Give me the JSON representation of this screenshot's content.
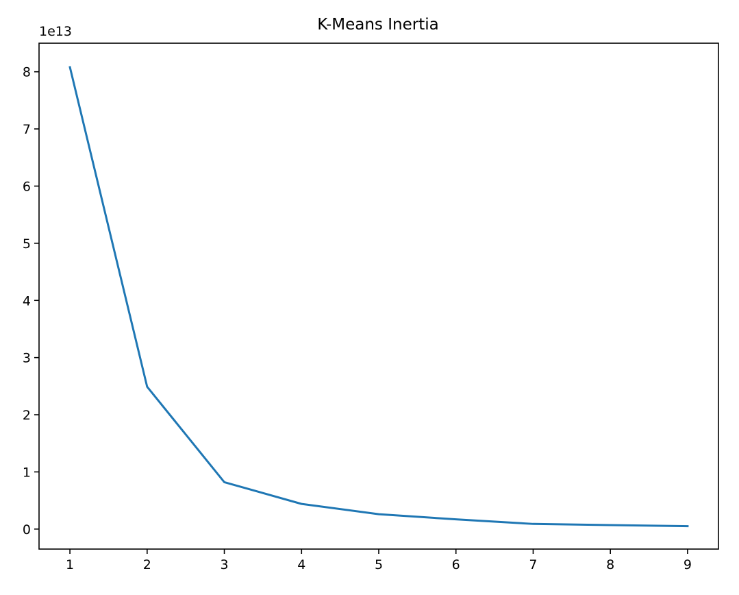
{
  "chart_data": {
    "type": "line",
    "title": "K-Means Inertia",
    "xlabel": "",
    "ylabel": "",
    "y_offset_label": "1e13",
    "x": [
      1,
      2,
      3,
      4,
      5,
      6,
      7,
      8,
      9
    ],
    "series": [
      {
        "color": "#1f77b4",
        "values": [
          8.08,
          2.49,
          0.82,
          0.44,
          0.26,
          0.17,
          0.09,
          0.07,
          0.05
        ]
      }
    ],
    "xlim": [
      0.6,
      9.4
    ],
    "ylim": [
      -0.35,
      8.5
    ],
    "x_ticks": [
      1,
      2,
      3,
      4,
      5,
      6,
      7,
      8,
      9
    ],
    "x_tick_labels": [
      "1",
      "2",
      "3",
      "4",
      "5",
      "6",
      "7",
      "8",
      "9"
    ],
    "y_ticks": [
      0,
      1,
      2,
      3,
      4,
      5,
      6,
      7,
      8
    ],
    "y_tick_labels": [
      "0",
      "1",
      "2",
      "3",
      "4",
      "5",
      "6",
      "7",
      "8"
    ],
    "grid": false,
    "legend": "none"
  }
}
